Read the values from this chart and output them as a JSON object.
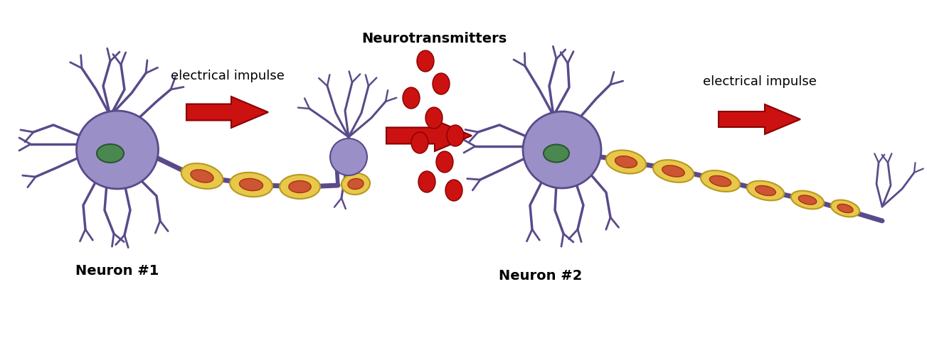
{
  "bg_color": "#ffffff",
  "neuron_body_color": "#9b8fc8",
  "neuron_body_edge": "#5a4a8a",
  "axon_color": "#9b8fc8",
  "myelin_color": "#e8c84a",
  "myelin_edge": "#b89820",
  "myelin_inner_color": "#cc5533",
  "myelin_inner_edge": "#aa3311",
  "node_color": "#a898d0",
  "nucleus_color": "#4a8850",
  "nucleus_edge": "#2a5530",
  "arrow_color": "#cc1111",
  "arrow_edge": "#880000",
  "nt_color": "#cc1111",
  "nt_edge": "#880000",
  "label_neuron1": "Neuron #1",
  "label_neuron2": "Neuron #2",
  "label_nt": "Neurotransmitters",
  "label_ei1": "electrical impulse",
  "label_ei2": "electrical impulse",
  "label_fontsize": 13
}
